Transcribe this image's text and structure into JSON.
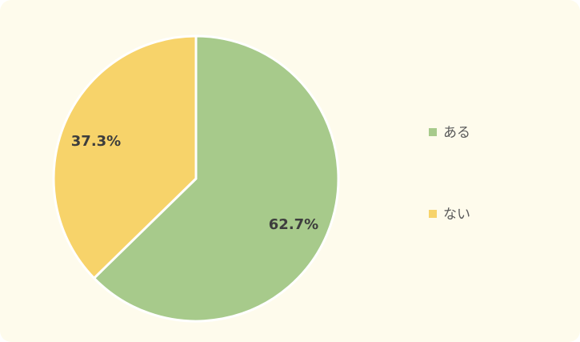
{
  "chart_data": {
    "type": "pie",
    "series": [
      {
        "name": "ある",
        "value": 62.7,
        "label": "62.7%",
        "color": "#a7ca8b"
      },
      {
        "name": "ない",
        "value": 37.3,
        "label": "37.3%",
        "color": "#f7d36a"
      }
    ],
    "legend_position": "right",
    "start_angle": "top",
    "direction": "clockwise"
  }
}
